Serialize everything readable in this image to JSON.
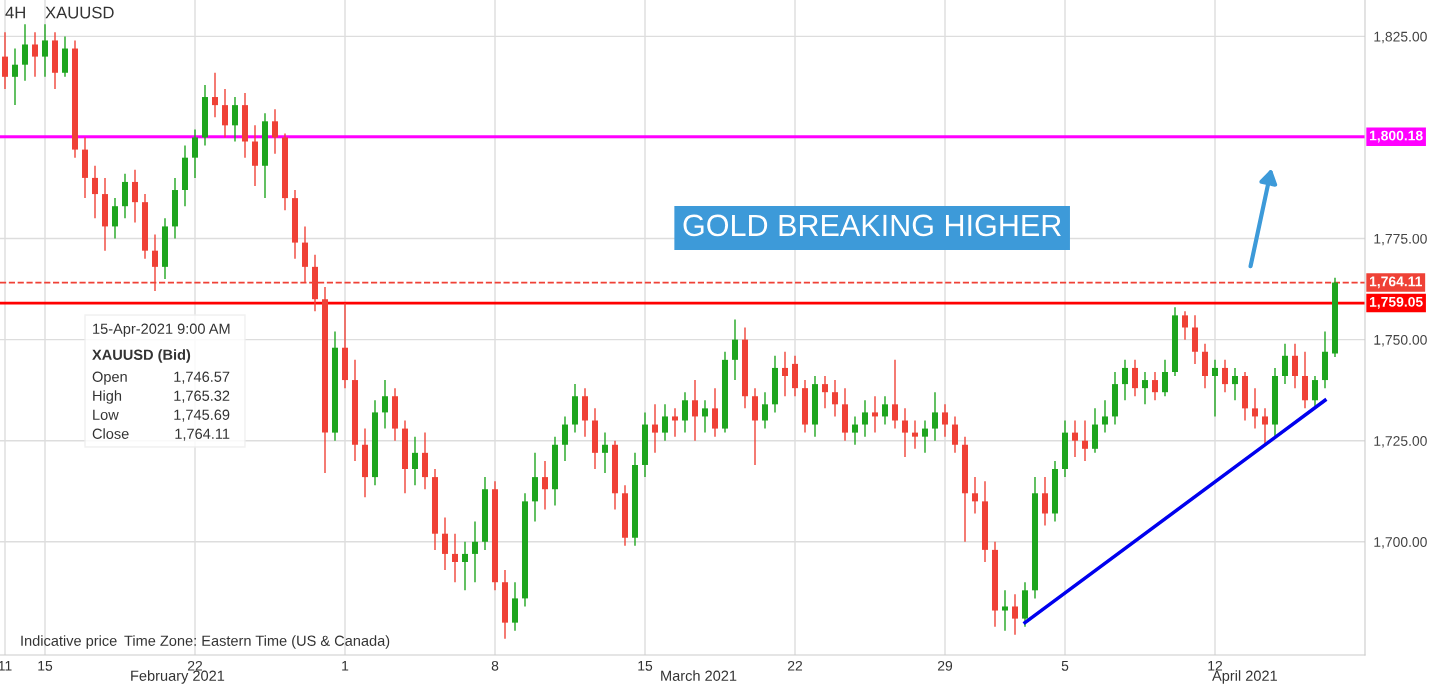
{
  "chart_data": {
    "type": "candlestick",
    "categories": [
      "11",
      null,
      null,
      null,
      "15",
      null,
      null,
      null,
      null,
      null,
      null,
      null,
      null,
      null,
      null,
      null,
      null,
      null,
      null,
      "22",
      null,
      null,
      null,
      null,
      null,
      null,
      null,
      null,
      null,
      null,
      null,
      null,
      null,
      null,
      "1",
      null,
      null,
      null,
      null,
      null,
      null,
      null,
      null,
      null,
      null,
      null,
      null,
      null,
      null,
      "8",
      null,
      null,
      null,
      null,
      null,
      null,
      null,
      null,
      null,
      null,
      null,
      null,
      null,
      null,
      "15",
      null,
      null,
      null,
      null,
      null,
      null,
      null,
      null,
      null,
      null,
      null,
      null,
      null,
      null,
      "22",
      null,
      null,
      null,
      null,
      null,
      null,
      null,
      null,
      null,
      null,
      null,
      null,
      null,
      null,
      "29",
      null,
      null,
      null,
      null,
      null,
      null,
      null,
      null,
      null,
      null,
      null,
      "5",
      null,
      null,
      null,
      null,
      null,
      null,
      null,
      null,
      null,
      null,
      null,
      null,
      null,
      null,
      "12",
      null,
      null,
      null,
      null,
      null,
      null,
      null,
      null,
      null,
      null,
      null,
      null
    ],
    "ohlc": [
      [
        1820,
        1826,
        1812,
        1815
      ],
      [
        1815,
        1822,
        1808,
        1818
      ],
      [
        1818,
        1828,
        1814,
        1823
      ],
      [
        1823,
        1826,
        1815,
        1820
      ],
      [
        1820,
        1828,
        1815,
        1824
      ],
      [
        1824,
        1826,
        1812,
        1816
      ],
      [
        1816,
        1825,
        1815,
        1822
      ],
      [
        1822,
        1824,
        1795,
        1797
      ],
      [
        1797,
        1800,
        1785,
        1790
      ],
      [
        1790,
        1793,
        1780,
        1786
      ],
      [
        1786,
        1790,
        1772,
        1778
      ],
      [
        1778,
        1785,
        1775,
        1783
      ],
      [
        1783,
        1791,
        1780,
        1789
      ],
      [
        1789,
        1792,
        1779,
        1784
      ],
      [
        1784,
        1786,
        1770,
        1772
      ],
      [
        1772,
        1776,
        1762,
        1768
      ],
      [
        1768,
        1780,
        1765,
        1778
      ],
      [
        1778,
        1790,
        1775,
        1787
      ],
      [
        1787,
        1798,
        1783,
        1795
      ],
      [
        1795,
        1802,
        1790,
        1800
      ],
      [
        1800,
        1813,
        1798,
        1810
      ],
      [
        1810,
        1816,
        1805,
        1808
      ],
      [
        1808,
        1812,
        1800,
        1803
      ],
      [
        1803,
        1810,
        1799,
        1808
      ],
      [
        1808,
        1811,
        1795,
        1799
      ],
      [
        1799,
        1803,
        1788,
        1793
      ],
      [
        1793,
        1806,
        1785,
        1804
      ],
      [
        1804,
        1807,
        1796,
        1800
      ],
      [
        1800,
        1801,
        1782,
        1785
      ],
      [
        1785,
        1787,
        1770,
        1774
      ],
      [
        1774,
        1778,
        1764,
        1768
      ],
      [
        1768,
        1771,
        1757,
        1760
      ],
      [
        1760,
        1763,
        1717,
        1727
      ],
      [
        1727,
        1752,
        1725,
        1748
      ],
      [
        1748,
        1759,
        1738,
        1740
      ],
      [
        1740,
        1745,
        1720,
        1724
      ],
      [
        1724,
        1728,
        1711,
        1716
      ],
      [
        1716,
        1735,
        1714,
        1732
      ],
      [
        1732,
        1740,
        1728,
        1736
      ],
      [
        1736,
        1738,
        1725,
        1728
      ],
      [
        1728,
        1730,
        1712,
        1718
      ],
      [
        1718,
        1726,
        1714,
        1722
      ],
      [
        1722,
        1727,
        1713,
        1716
      ],
      [
        1716,
        1718,
        1698,
        1702
      ],
      [
        1702,
        1706,
        1693,
        1697
      ],
      [
        1697,
        1702,
        1690,
        1695
      ],
      [
        1695,
        1700,
        1688,
        1697
      ],
      [
        1697,
        1705,
        1690,
        1700
      ],
      [
        1700,
        1716,
        1698,
        1713
      ],
      [
        1713,
        1715,
        1688,
        1690
      ],
      [
        1690,
        1693,
        1676,
        1680
      ],
      [
        1680,
        1690,
        1678,
        1686
      ],
      [
        1686,
        1712,
        1684,
        1710
      ],
      [
        1710,
        1722,
        1705,
        1716
      ],
      [
        1716,
        1720,
        1708,
        1713
      ],
      [
        1713,
        1726,
        1709,
        1724
      ],
      [
        1724,
        1731,
        1720,
        1729
      ],
      [
        1729,
        1739,
        1727,
        1736
      ],
      [
        1736,
        1738,
        1726,
        1730
      ],
      [
        1730,
        1733,
        1718,
        1722
      ],
      [
        1722,
        1727,
        1717,
        1724
      ],
      [
        1724,
        1725,
        1708,
        1712
      ],
      [
        1712,
        1714,
        1699,
        1701
      ],
      [
        1701,
        1722,
        1699,
        1719
      ],
      [
        1719,
        1732,
        1716,
        1729
      ],
      [
        1729,
        1734,
        1722,
        1727
      ],
      [
        1727,
        1734,
        1725,
        1731
      ],
      [
        1731,
        1733,
        1726,
        1730
      ],
      [
        1730,
        1737,
        1727,
        1735
      ],
      [
        1735,
        1740,
        1725,
        1731
      ],
      [
        1731,
        1735,
        1727,
        1733
      ],
      [
        1733,
        1738,
        1726,
        1728
      ],
      [
        1728,
        1747,
        1727,
        1745
      ],
      [
        1745,
        1755,
        1740,
        1750
      ],
      [
        1750,
        1753,
        1733,
        1736
      ],
      [
        1736,
        1738,
        1719,
        1730
      ],
      [
        1730,
        1737,
        1728,
        1734
      ],
      [
        1734,
        1746,
        1732,
        1743
      ],
      [
        1743,
        1747,
        1736,
        1741
      ],
      [
        1744,
        1746,
        1736,
        1738
      ],
      [
        1738,
        1740,
        1727,
        1729
      ],
      [
        1729,
        1741,
        1726,
        1739
      ],
      [
        1739,
        1741,
        1733,
        1737
      ],
      [
        1737,
        1740,
        1731,
        1734
      ],
      [
        1734,
        1738,
        1725,
        1727
      ],
      [
        1727,
        1731,
        1724,
        1729
      ],
      [
        1729,
        1735,
        1726,
        1732
      ],
      [
        1732,
        1736,
        1727,
        1731
      ],
      [
        1731,
        1736,
        1729,
        1734
      ],
      [
        1734,
        1745,
        1728,
        1730
      ],
      [
        1730,
        1733,
        1721,
        1727
      ],
      [
        1727,
        1730,
        1723,
        1726
      ],
      [
        1726,
        1730,
        1722,
        1728
      ],
      [
        1728,
        1737,
        1725,
        1732
      ],
      [
        1732,
        1734,
        1726,
        1729
      ],
      [
        1729,
        1731,
        1722,
        1724
      ],
      [
        1724,
        1726,
        1700,
        1712
      ],
      [
        1712,
        1716,
        1707,
        1710
      ],
      [
        1710,
        1715,
        1695,
        1698
      ],
      [
        1698,
        1700,
        1679,
        1683
      ],
      [
        1683,
        1688,
        1678,
        1684
      ],
      [
        1684,
        1687,
        1677,
        1681
      ],
      [
        1681,
        1690,
        1679,
        1688
      ],
      [
        1688,
        1716,
        1686,
        1712
      ],
      [
        1712,
        1716,
        1704,
        1707
      ],
      [
        1707,
        1720,
        1705,
        1718
      ],
      [
        1718,
        1730,
        1716,
        1727
      ],
      [
        1727,
        1730,
        1721,
        1725
      ],
      [
        1725,
        1730,
        1720,
        1723
      ],
      [
        1723,
        1733,
        1722,
        1729
      ],
      [
        1729,
        1735,
        1727,
        1731
      ],
      [
        1731,
        1742,
        1729,
        1739
      ],
      [
        1739,
        1745,
        1735,
        1743
      ],
      [
        1743,
        1745,
        1736,
        1738
      ],
      [
        1738,
        1742,
        1734,
        1740
      ],
      [
        1740,
        1742,
        1735,
        1737
      ],
      [
        1737,
        1745,
        1736,
        1742
      ],
      [
        1742,
        1758,
        1741,
        1756
      ],
      [
        1756,
        1757,
        1750,
        1753
      ],
      [
        1753,
        1756,
        1744,
        1747
      ],
      [
        1747,
        1749,
        1738,
        1741
      ],
      [
        1741,
        1745,
        1731,
        1743
      ],
      [
        1743,
        1745,
        1737,
        1739
      ],
      [
        1739,
        1743,
        1735,
        1741
      ],
      [
        1741,
        1742,
        1730,
        1733
      ],
      [
        1733,
        1738,
        1728,
        1731
      ],
      [
        1731,
        1733,
        1724,
        1729
      ],
      [
        1729,
        1743,
        1726,
        1741
      ],
      [
        1741,
        1749,
        1739,
        1746
      ],
      [
        1746,
        1749,
        1738,
        1741
      ],
      [
        1741,
        1747,
        1733,
        1735
      ],
      [
        1735,
        1741,
        1733,
        1740
      ],
      [
        1740,
        1752,
        1738,
        1747
      ],
      [
        1746.57,
        1765.32,
        1745.69,
        1764.11
      ]
    ],
    "series": [
      {
        "type": "line",
        "color": "#0000ee",
        "values": [
          null,
          null,
          null,
          null,
          null,
          null,
          null,
          null,
          null,
          null,
          null,
          null,
          null,
          null,
          null,
          null,
          null,
          null,
          null,
          null,
          null,
          null,
          null,
          null,
          null,
          null,
          null,
          null,
          null,
          null,
          null,
          null,
          null,
          null,
          null,
          null,
          null,
          null,
          null,
          null,
          null,
          null,
          null,
          null,
          null,
          null,
          null,
          null,
          null,
          null,
          null,
          null,
          null,
          null,
          null,
          null,
          null,
          null,
          null,
          null,
          null,
          null,
          null,
          null,
          null,
          null,
          null,
          null,
          null,
          null,
          null,
          null,
          null,
          null,
          null,
          null,
          null,
          null,
          null,
          null,
          null,
          null,
          null,
          null,
          null,
          null,
          null,
          null,
          null,
          null,
          null,
          null,
          null,
          null,
          null,
          null,
          null,
          null,
          null,
          null,
          null,
          null,
          1680,
          null,
          null,
          null,
          null,
          null,
          null,
          null,
          null,
          null,
          null,
          null,
          null,
          null,
          null,
          null,
          null,
          null,
          null,
          null,
          null,
          null,
          null,
          null,
          null,
          null,
          null,
          null,
          null,
          null,
          1735,
          null
        ]
      }
    ],
    "ylim": [
      1672,
      1834
    ],
    "yticks": [
      {
        "value": 1700,
        "label": "1,700.00"
      },
      {
        "value": 1725,
        "label": "1,725.00"
      },
      {
        "value": 1750,
        "label": "1,750.00"
      },
      {
        "value": 1775,
        "label": "1,775.00"
      },
      {
        "value": 1800,
        "label": null
      },
      {
        "value": 1825,
        "label": "1,825.00"
      }
    ],
    "grid": true,
    "ref_lines": [
      {
        "axis": "y",
        "value": 1800.18,
        "label": "1,800.18",
        "color": "#ff00ff"
      },
      {
        "axis": "y",
        "value": 1764.11,
        "label": "1,764.11",
        "color": "#ef4136",
        "line_style": "dashed"
      },
      {
        "axis": "y",
        "value": 1759.05,
        "label": "1,759.05",
        "color": "#ff0000"
      }
    ],
    "annotations": [
      "4H",
      "XAUUSD",
      "GOLD BREAKING HIGHER",
      "15-Apr-2021 9:00 AM",
      "XAUUSD (Bid)",
      "Open",
      "1,746.57",
      "High",
      "1,765.32",
      "Low",
      "1,745.69",
      "Close",
      "1,764.11",
      "Indicative price",
      "Time Zone: Eastern Time (US & Canada)",
      "February 2021",
      "March 2021",
      "April 2021"
    ]
  }
}
